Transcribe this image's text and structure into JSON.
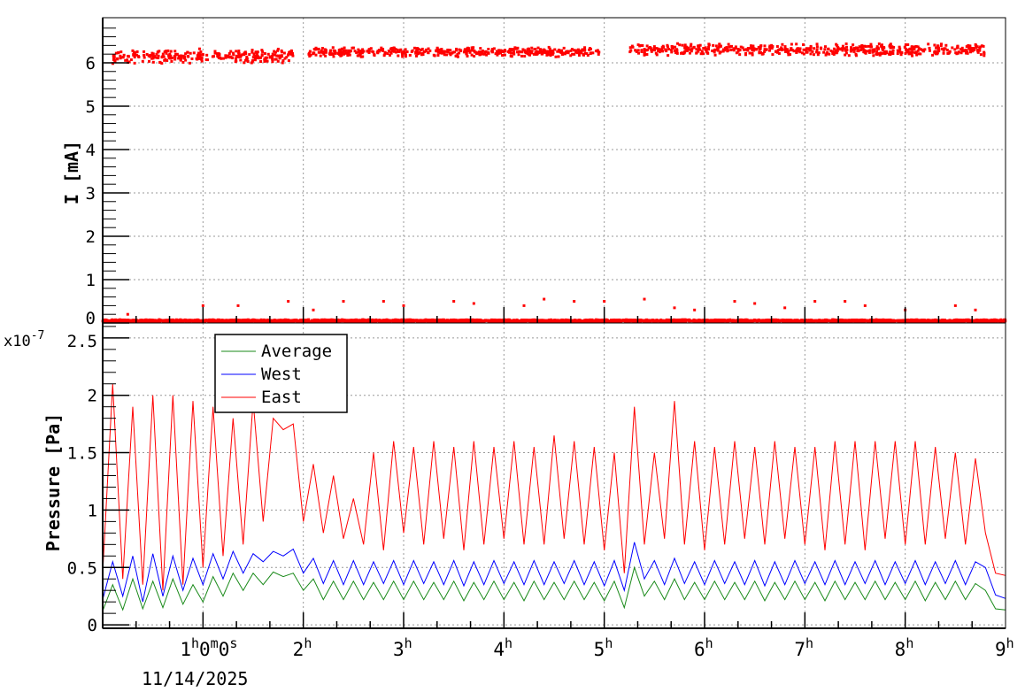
{
  "colors": {
    "average": "#1a8a1a",
    "west": "#0000ff",
    "east": "#ff0000",
    "current": "#ff0000"
  },
  "chart_data": [
    {
      "type": "scatter",
      "title": "",
      "ylabel": "I [mA]",
      "xlim_hours": [
        0,
        9
      ],
      "ylim": [
        0,
        7.04
      ],
      "y_ticks": [
        "0",
        "1",
        "2",
        "3",
        "4",
        "5",
        "6"
      ],
      "grid": true,
      "bands": [
        {
          "from": 0.1,
          "to": 1.9,
          "mean": 6.15,
          "spread": 0.12
        },
        {
          "from": 2.05,
          "to": 4.95,
          "mean": 6.25,
          "spread": 0.08
        },
        {
          "from": 5.25,
          "to": 8.8,
          "mean": 6.3,
          "spread": 0.1
        },
        {
          "from": 0.0,
          "to": 9.0,
          "mean": 0.05,
          "spread": 0.02
        }
      ],
      "outliers": [
        [
          0.25,
          0.2
        ],
        [
          1.0,
          0.4
        ],
        [
          1.35,
          0.4
        ],
        [
          1.85,
          0.5
        ],
        [
          2.1,
          0.3
        ],
        [
          2.4,
          0.5
        ],
        [
          2.8,
          0.5
        ],
        [
          3.0,
          0.4
        ],
        [
          3.5,
          0.5
        ],
        [
          3.7,
          0.45
        ],
        [
          4.2,
          0.4
        ],
        [
          4.4,
          0.55
        ],
        [
          4.7,
          0.5
        ],
        [
          5.0,
          0.5
        ],
        [
          5.4,
          0.55
        ],
        [
          5.7,
          0.35
        ],
        [
          5.9,
          0.3
        ],
        [
          6.3,
          0.5
        ],
        [
          6.5,
          0.45
        ],
        [
          6.8,
          0.35
        ],
        [
          7.1,
          0.5
        ],
        [
          7.4,
          0.5
        ],
        [
          7.6,
          0.4
        ],
        [
          8.0,
          0.3
        ],
        [
          8.5,
          0.4
        ],
        [
          8.7,
          0.3
        ]
      ]
    },
    {
      "type": "line",
      "ylabel": "Pressure [Pa]",
      "y_exponent": "x10",
      "y_exponent_power": "-7",
      "xlim_hours": [
        0,
        9
      ],
      "ylim": [
        -0.03,
        2.63
      ],
      "y_ticks": [
        "0",
        "0.5",
        "1",
        "1.5",
        "2",
        "2.5"
      ],
      "x_ticks": [
        "1",
        "2",
        "3",
        "4",
        "5",
        "6",
        "7",
        "8",
        "9"
      ],
      "x_first_label_suffix": {
        "h": "h",
        "m0": "0",
        "m": "m",
        "s0": "0",
        "s": "s"
      },
      "x_date": "11/14/2025",
      "x_step_hours": 0.1,
      "grid": true,
      "legend": {
        "position": "top-left",
        "entries": [
          "Average",
          "West",
          "East"
        ]
      },
      "series": [
        {
          "name": "Average",
          "values": [
            0.12,
            0.35,
            0.13,
            0.4,
            0.14,
            0.38,
            0.15,
            0.4,
            0.18,
            0.35,
            0.2,
            0.42,
            0.25,
            0.45,
            0.3,
            0.45,
            0.35,
            0.46,
            0.42,
            0.45,
            0.3,
            0.4,
            0.22,
            0.38,
            0.22,
            0.38,
            0.22,
            0.37,
            0.22,
            0.38,
            0.22,
            0.38,
            0.22,
            0.37,
            0.22,
            0.38,
            0.21,
            0.37,
            0.22,
            0.38,
            0.22,
            0.37,
            0.21,
            0.38,
            0.22,
            0.37,
            0.22,
            0.38,
            0.22,
            0.37,
            0.21,
            0.38,
            0.15,
            0.5,
            0.25,
            0.38,
            0.22,
            0.4,
            0.22,
            0.37,
            0.22,
            0.38,
            0.22,
            0.37,
            0.22,
            0.38,
            0.21,
            0.37,
            0.22,
            0.38,
            0.22,
            0.37,
            0.21,
            0.38,
            0.22,
            0.37,
            0.22,
            0.38,
            0.22,
            0.37,
            0.22,
            0.38,
            0.21,
            0.37,
            0.22,
            0.38,
            0.22,
            0.36,
            0.3,
            0.14,
            0.13
          ]
        },
        {
          "name": "West",
          "values": [
            0.22,
            0.55,
            0.25,
            0.6,
            0.2,
            0.62,
            0.25,
            0.6,
            0.3,
            0.58,
            0.35,
            0.62,
            0.4,
            0.64,
            0.45,
            0.62,
            0.55,
            0.64,
            0.6,
            0.66,
            0.45,
            0.58,
            0.36,
            0.56,
            0.35,
            0.56,
            0.35,
            0.55,
            0.36,
            0.56,
            0.35,
            0.56,
            0.36,
            0.55,
            0.35,
            0.56,
            0.34,
            0.55,
            0.35,
            0.56,
            0.36,
            0.55,
            0.35,
            0.56,
            0.35,
            0.55,
            0.36,
            0.56,
            0.35,
            0.55,
            0.34,
            0.56,
            0.3,
            0.72,
            0.4,
            0.56,
            0.35,
            0.58,
            0.36,
            0.55,
            0.35,
            0.56,
            0.36,
            0.55,
            0.35,
            0.56,
            0.34,
            0.55,
            0.35,
            0.56,
            0.36,
            0.55,
            0.35,
            0.56,
            0.35,
            0.55,
            0.36,
            0.56,
            0.35,
            0.55,
            0.36,
            0.56,
            0.35,
            0.55,
            0.36,
            0.56,
            0.35,
            0.55,
            0.5,
            0.26,
            0.23
          ]
        },
        {
          "name": "East",
          "values": [
            0.45,
            2.1,
            0.4,
            1.9,
            0.35,
            2.0,
            0.3,
            2.0,
            0.35,
            1.95,
            0.5,
            1.9,
            0.6,
            1.8,
            0.7,
            1.95,
            0.9,
            1.8,
            1.7,
            1.75,
            0.9,
            1.4,
            0.8,
            1.3,
            0.75,
            1.1,
            0.7,
            1.5,
            0.65,
            1.6,
            0.8,
            1.55,
            0.7,
            1.6,
            0.75,
            1.55,
            0.65,
            1.6,
            0.7,
            1.55,
            0.75,
            1.6,
            0.7,
            1.55,
            0.7,
            1.65,
            0.75,
            1.6,
            0.7,
            1.55,
            0.65,
            1.5,
            0.45,
            1.9,
            0.7,
            1.5,
            0.75,
            1.95,
            0.7,
            1.6,
            0.65,
            1.55,
            0.7,
            1.6,
            0.75,
            1.55,
            0.7,
            1.6,
            0.75,
            1.55,
            0.7,
            1.55,
            0.65,
            1.6,
            0.7,
            1.6,
            0.65,
            1.6,
            0.75,
            1.6,
            0.7,
            1.6,
            0.7,
            1.55,
            0.75,
            1.5,
            0.7,
            1.45,
            0.8,
            0.45,
            0.43
          ]
        }
      ]
    }
  ]
}
